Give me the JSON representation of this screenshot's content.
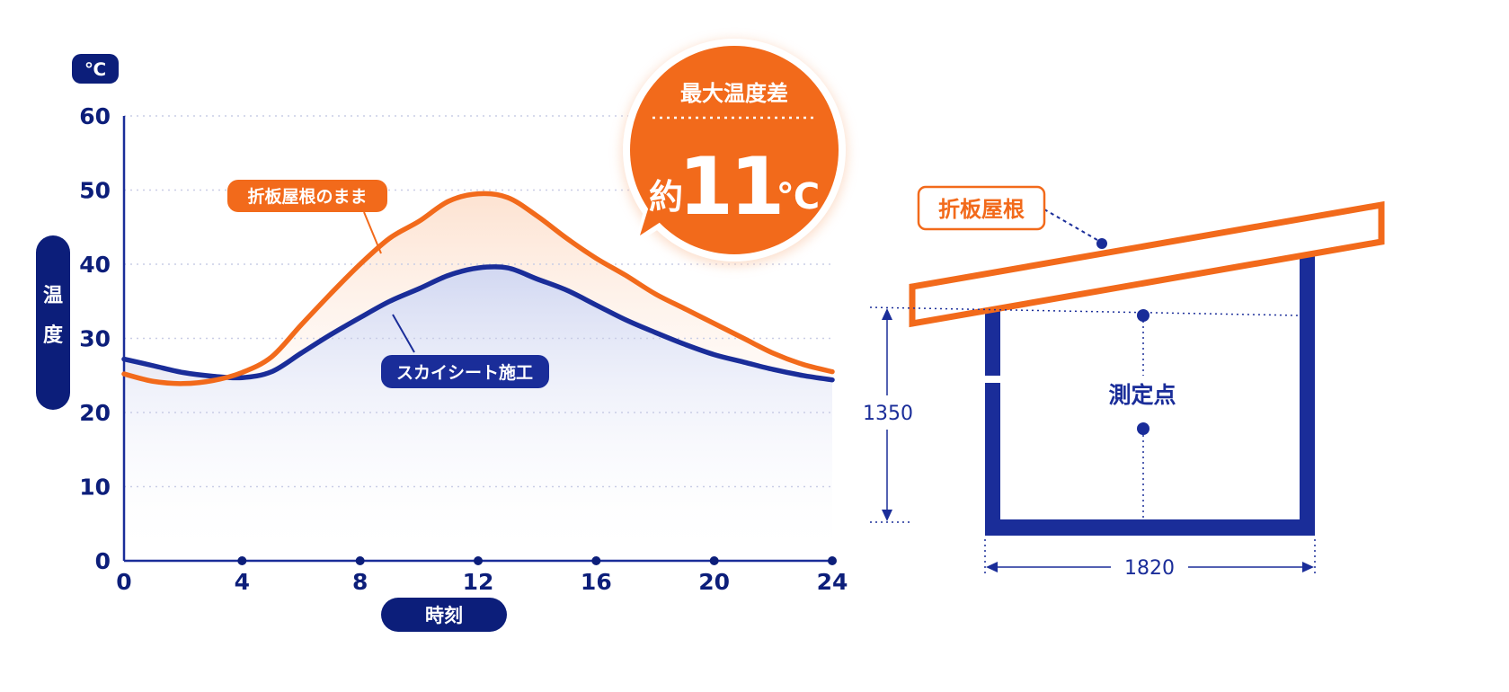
{
  "chart_data": {
    "type": "line",
    "unit_label": "℃",
    "ylabel": "温度",
    "xlabel": "時刻",
    "xlim": [
      0,
      24
    ],
    "ylim": [
      0,
      60
    ],
    "x_ticks": [
      0,
      4,
      8,
      12,
      16,
      20,
      24
    ],
    "y_ticks": [
      0,
      10,
      20,
      30,
      40,
      50,
      60
    ],
    "series": [
      {
        "name": "折板屋根のまま",
        "color": "#f26a1b",
        "x": [
          0,
          1,
          2,
          3,
          4,
          5,
          6,
          7,
          8,
          9,
          10,
          11,
          12,
          13,
          14,
          15,
          16,
          17,
          18,
          19,
          20,
          21,
          22,
          23,
          24
        ],
        "values": [
          25.2,
          24.2,
          23.9,
          24.3,
          25.4,
          27.5,
          31.8,
          36.0,
          40.0,
          43.5,
          45.8,
          48.5,
          49.5,
          49.0,
          46.5,
          43.5,
          40.8,
          38.5,
          36.0,
          34.0,
          32.0,
          30.0,
          28.0,
          26.5,
          25.5
        ]
      },
      {
        "name": "スカイシート施工",
        "color": "#1a2d99",
        "x": [
          0,
          1,
          2,
          3,
          4,
          5,
          6,
          7,
          8,
          9,
          10,
          11,
          12,
          13,
          14,
          15,
          16,
          17,
          18,
          19,
          20,
          21,
          22,
          23,
          24
        ],
        "values": [
          27.2,
          26.3,
          25.4,
          24.9,
          24.7,
          25.5,
          28.0,
          30.5,
          32.8,
          35.0,
          36.7,
          38.5,
          39.5,
          39.5,
          38.0,
          36.5,
          34.5,
          32.5,
          30.8,
          29.2,
          27.8,
          26.8,
          25.8,
          25.0,
          24.4
        ]
      }
    ],
    "callout": {
      "title": "最大温度差",
      "prefix": "約",
      "value": "11",
      "unit": "℃"
    }
  },
  "diagram": {
    "roof_label": "折板屋根",
    "point_label": "測定点",
    "height_value": "1350",
    "width_value": "1820"
  },
  "colors": {
    "orange": "#f26a1b",
    "navy": "#1a2d99",
    "dark_navy": "#0c1e7a",
    "grid": "#c9cde6"
  }
}
